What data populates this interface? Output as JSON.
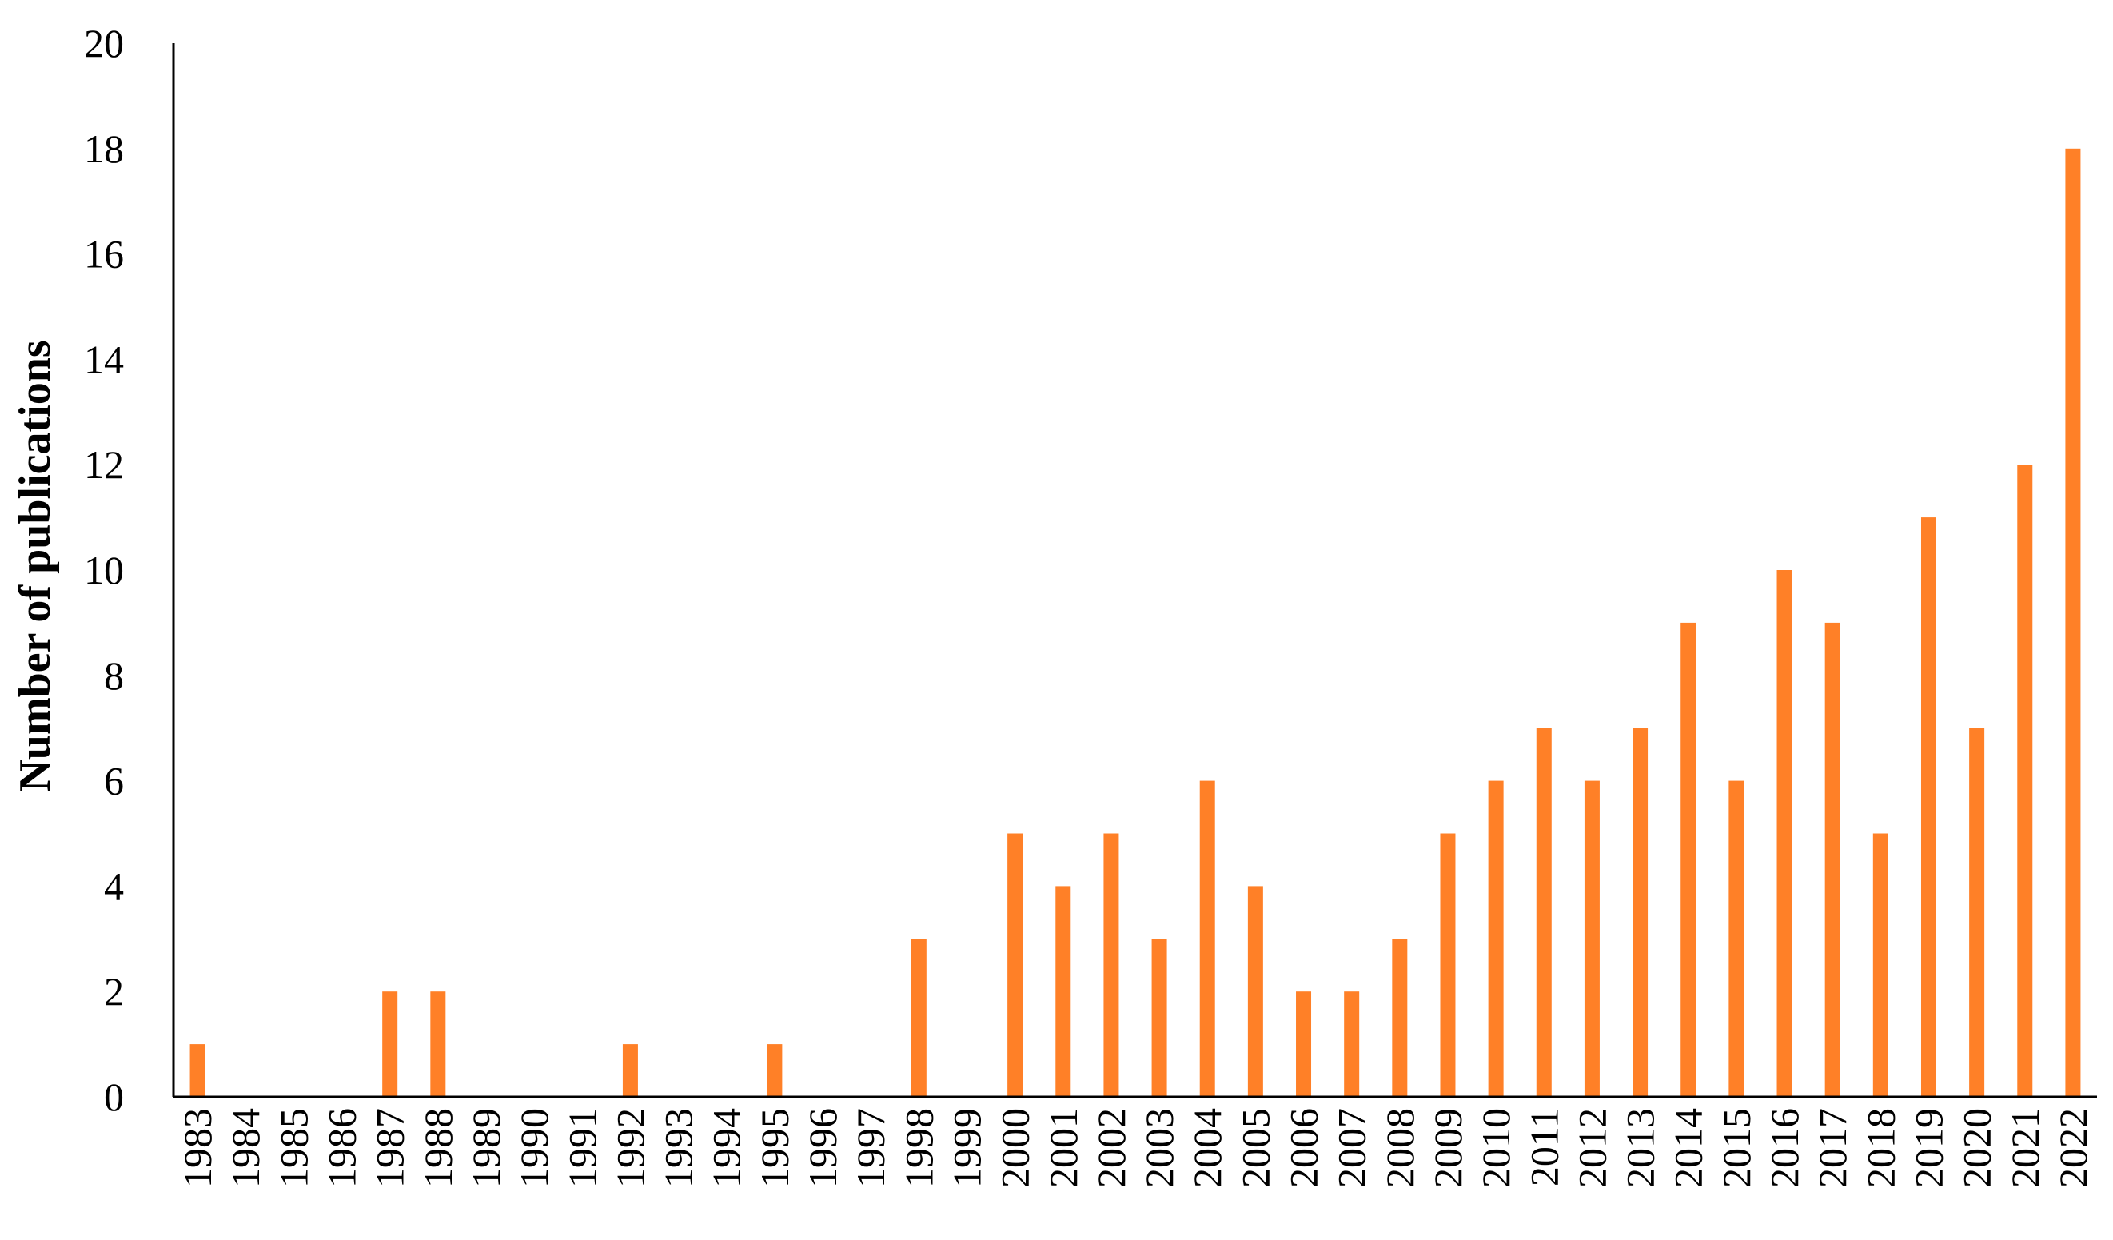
{
  "chart_data": {
    "type": "bar",
    "title": "",
    "xlabel": "",
    "ylabel": "Number of publications",
    "ylim": [
      0,
      20
    ],
    "yticks": [
      "0",
      "2",
      "4",
      "6",
      "8",
      "10",
      "12",
      "14",
      "16",
      "18",
      "20"
    ],
    "grid": false,
    "bar_color": "#FF8027",
    "categories": [
      "1983",
      "1984",
      "1985",
      "1986",
      "1987",
      "1988",
      "1989",
      "1990",
      "1991",
      "1992",
      "1993",
      "1994",
      "1995",
      "1996",
      "1997",
      "1998",
      "1999",
      "2000",
      "2001",
      "2002",
      "2003",
      "2004",
      "2005",
      "2006",
      "2007",
      "2008",
      "2009",
      "2010",
      "2011",
      "2012",
      "2013",
      "2014",
      "2015",
      "2016",
      "2017",
      "2018",
      "2019",
      "2020",
      "2021",
      "2022"
    ],
    "values": [
      1,
      0,
      0,
      0,
      2,
      2,
      0,
      0,
      0,
      1,
      0,
      0,
      1,
      0,
      0,
      3,
      0,
      5,
      4,
      5,
      3,
      6,
      4,
      2,
      2,
      3,
      5,
      6,
      7,
      6,
      7,
      9,
      6,
      10,
      9,
      5,
      11,
      7,
      12,
      18
    ]
  }
}
